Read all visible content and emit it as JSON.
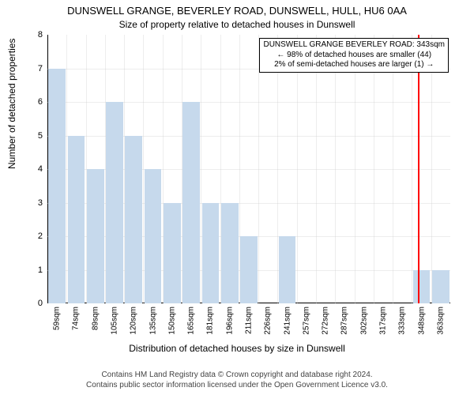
{
  "title": "DUNSWELL GRANGE, BEVERLEY ROAD, DUNSWELL, HULL, HU6 0AA",
  "subtitle": "Size of property relative to detached houses in Dunswell",
  "y_axis_title": "Number of detached properties",
  "x_axis_title": "Distribution of detached houses by size in Dunswell",
  "chart": {
    "type": "bar",
    "ylim": [
      0,
      8
    ],
    "ytick_step": 1,
    "x_labels": [
      "59sqm",
      "74sqm",
      "89sqm",
      "105sqm",
      "120sqm",
      "135sqm",
      "150sqm",
      "165sqm",
      "181sqm",
      "196sqm",
      "211sqm",
      "226sqm",
      "241sqm",
      "257sqm",
      "272sqm",
      "287sqm",
      "302sqm",
      "317sqm",
      "333sqm",
      "348sqm",
      "363sqm"
    ],
    "values": [
      7,
      5,
      4,
      6,
      5,
      4,
      3,
      6,
      3,
      3,
      2,
      0,
      2,
      0,
      0,
      0,
      0,
      0,
      0,
      1,
      1
    ],
    "bar_color": "#c6d9ec",
    "bar_width_ratio": 0.9,
    "background_color": "#ffffff",
    "grid_color": "#cccccc",
    "axis_color": "#000000",
    "tick_fontsize": 10,
    "label_fontsize": 11,
    "title_fontsize": 13,
    "marker": {
      "index_position": 18.8,
      "color": "#ff0000",
      "lines": [
        "DUNSWELL GRANGE BEVERLEY ROAD: 343sqm",
        "← 98% of detached houses are smaller (44)",
        "2% of semi-detached houses are larger (1) →"
      ]
    }
  },
  "footer": {
    "line1": "Contains HM Land Registry data © Crown copyright and database right 2024.",
    "line2": "Contains public sector information licensed under the Open Government Licence v3.0."
  }
}
